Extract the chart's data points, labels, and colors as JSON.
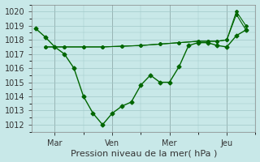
{
  "title": "",
  "xlabel": "Pression niveau de la mer( hPa )",
  "ylabel": "",
  "bg_color": "#c8e8e8",
  "grid_color": "#a0c8c8",
  "line_color": "#006600",
  "ylim": [
    1011.5,
    1020.5
  ],
  "yticks": [
    1012,
    1013,
    1014,
    1015,
    1016,
    1017,
    1018,
    1019,
    1020
  ],
  "xtick_labels": [
    "Mar",
    "Ven",
    "Mer",
    "Jeu"
  ],
  "xtick_positions": [
    1,
    4,
    7,
    10
  ],
  "series1_x": [
    0,
    0.5,
    1,
    1.5,
    2,
    2.5,
    3,
    3.5,
    4,
    4.5,
    5,
    5.5,
    6,
    6.5,
    7,
    7.5,
    8,
    8.5,
    9,
    9.5,
    10,
    10.5,
    11
  ],
  "series1_y": [
    1018.8,
    1018.2,
    1017.5,
    1017.0,
    1016.0,
    1014.0,
    1012.8,
    1012.0,
    1012.8,
    1013.3,
    1013.6,
    1014.8,
    1015.5,
    1015.0,
    1015.0,
    1016.1,
    1017.6,
    1017.8,
    1017.8,
    1017.6,
    1017.5,
    1018.3,
    1018.7
  ],
  "series2_x": [
    0.5,
    1.5,
    2.5,
    3.5,
    4.5,
    5.5,
    6.5,
    7.5,
    8.5,
    9.0,
    9.5,
    10.0,
    10.5,
    11.0
  ],
  "series2_y": [
    1017.5,
    1017.5,
    1017.5,
    1017.5,
    1017.55,
    1017.6,
    1017.7,
    1017.8,
    1017.9,
    1017.9,
    1017.9,
    1018.0,
    1019.8,
    1018.7
  ],
  "series3_x": [
    0.5,
    1.5,
    2.5,
    3.5,
    4.5,
    5.5,
    6.5,
    7.5,
    8.5,
    9.0,
    9.5,
    10.0,
    10.5,
    11.0
  ],
  "series3_y": [
    1017.5,
    1017.5,
    1017.5,
    1017.5,
    1017.55,
    1017.6,
    1017.7,
    1017.8,
    1017.9,
    1017.9,
    1017.9,
    1018.0,
    1020.0,
    1019.0
  ],
  "vline_positions": [
    1,
    4,
    7,
    10
  ],
  "xlim": [
    -0.2,
    11.5
  ]
}
